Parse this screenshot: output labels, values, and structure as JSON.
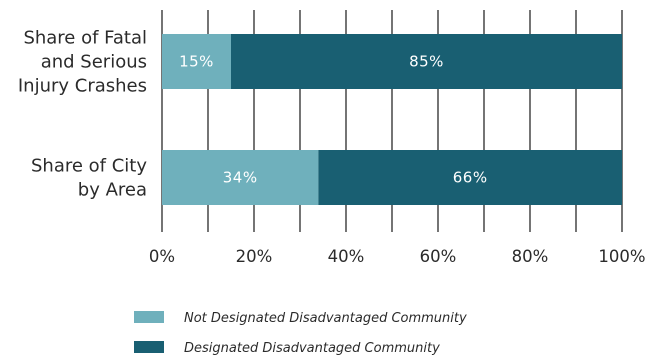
{
  "chart_data": {
    "type": "bar",
    "orientation": "horizontal",
    "stacked": true,
    "categories": [
      [
        "Share of Fatal",
        "and Serious",
        "Injury Crashes"
      ],
      [
        "Share of City",
        "by Area"
      ]
    ],
    "series": [
      {
        "name": "Not Designated Disadvantaged Community",
        "color": "#6fb0bc",
        "values": [
          15,
          34
        ],
        "labels": [
          "15%",
          "34%"
        ]
      },
      {
        "name": "Designated Disadvantaged Community",
        "color": "#195f72",
        "values": [
          85,
          66
        ],
        "labels": [
          "85%",
          "66%"
        ]
      }
    ],
    "xlim": [
      0,
      100
    ],
    "xticks": [
      0,
      20,
      40,
      60,
      80,
      100
    ],
    "xtick_labels": [
      "0%",
      "20%",
      "40%",
      "60%",
      "80%",
      "100%"
    ],
    "grid": "vertical lines every 10%",
    "legend_position": "bottom"
  }
}
